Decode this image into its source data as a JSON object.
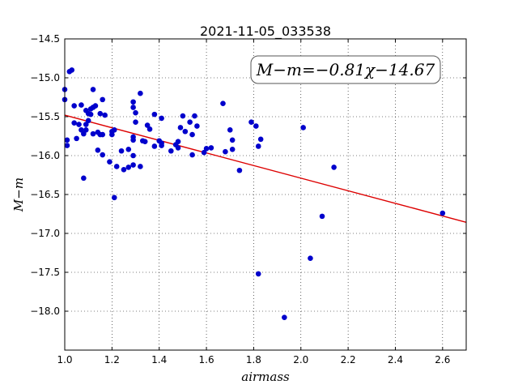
{
  "chart_data": {
    "type": "scatter",
    "title": "2021-11-05_033538",
    "xlabel": "airmass",
    "ylabel": "M−m",
    "xlim": [
      1.0,
      2.7
    ],
    "ylim": [
      -18.5,
      -14.5
    ],
    "y_inverted": true,
    "x_ticks": [
      1.0,
      1.2,
      1.4,
      1.6,
      1.8,
      2.0,
      2.2,
      2.4,
      2.6
    ],
    "x_tick_labels": [
      "1.0",
      "1.2",
      "1.4",
      "1.6",
      "1.8",
      "2.0",
      "2.2",
      "2.4",
      "2.6"
    ],
    "y_ticks": [
      -14.5,
      -15.0,
      -15.5,
      -16.0,
      -16.5,
      -17.0,
      -17.5,
      -18.0
    ],
    "y_tick_labels": [
      "−14.5",
      "−15.0",
      "−15.5",
      "−16.0",
      "−16.5",
      "−17.0",
      "−17.5",
      "−18.0"
    ],
    "grid": true,
    "annotation": "M−m=−0.81χ−14.67",
    "fit": {
      "slope": -0.81,
      "intercept": -14.67,
      "color": "#dd0000"
    },
    "marker_color": "#0000cc",
    "points": [
      [
        1.0,
        -15.15
      ],
      [
        1.0,
        -15.28
      ],
      [
        1.01,
        -15.8
      ],
      [
        1.01,
        -15.87
      ],
      [
        1.02,
        -14.92
      ],
      [
        1.03,
        -14.9
      ],
      [
        1.04,
        -15.36
      ],
      [
        1.04,
        -15.58
      ],
      [
        1.05,
        -15.78
      ],
      [
        1.06,
        -15.6
      ],
      [
        1.07,
        -15.67
      ],
      [
        1.07,
        -15.35
      ],
      [
        1.08,
        -15.72
      ],
      [
        1.08,
        -16.29
      ],
      [
        1.09,
        -15.42
      ],
      [
        1.09,
        -15.6
      ],
      [
        1.09,
        -15.67
      ],
      [
        1.1,
        -15.46
      ],
      [
        1.1,
        -15.55
      ],
      [
        1.11,
        -15.4
      ],
      [
        1.11,
        -15.47
      ],
      [
        1.12,
        -15.15
      ],
      [
        1.12,
        -15.38
      ],
      [
        1.12,
        -15.72
      ],
      [
        1.13,
        -15.36
      ],
      [
        1.14,
        -15.93
      ],
      [
        1.14,
        -15.7
      ],
      [
        1.15,
        -15.46
      ],
      [
        1.15,
        -15.73
      ],
      [
        1.16,
        -15.28
      ],
      [
        1.16,
        -15.73
      ],
      [
        1.16,
        -15.99
      ],
      [
        1.17,
        -15.48
      ],
      [
        1.19,
        -16.08
      ],
      [
        1.2,
        -15.69
      ],
      [
        1.2,
        -15.73
      ],
      [
        1.21,
        -15.67
      ],
      [
        1.21,
        -16.54
      ],
      [
        1.22,
        -16.14
      ],
      [
        1.24,
        -15.94
      ],
      [
        1.25,
        -16.18
      ],
      [
        1.27,
        -16.15
      ],
      [
        1.27,
        -15.92
      ],
      [
        1.29,
        -16.12
      ],
      [
        1.29,
        -15.31
      ],
      [
        1.29,
        -15.38
      ],
      [
        1.3,
        -15.45
      ],
      [
        1.3,
        -15.57
      ],
      [
        1.29,
        -15.76
      ],
      [
        1.29,
        -15.8
      ],
      [
        1.29,
        -16.0
      ],
      [
        1.32,
        -16.14
      ],
      [
        1.32,
        -15.2
      ],
      [
        1.33,
        -15.81
      ],
      [
        1.34,
        -15.82
      ],
      [
        1.35,
        -15.61
      ],
      [
        1.36,
        -15.66
      ],
      [
        1.38,
        -15.88
      ],
      [
        1.38,
        -15.47
      ],
      [
        1.4,
        -15.81
      ],
      [
        1.41,
        -15.52
      ],
      [
        1.41,
        -15.84
      ],
      [
        1.41,
        -15.87
      ],
      [
        1.45,
        -15.94
      ],
      [
        1.47,
        -15.86
      ],
      [
        1.48,
        -15.82
      ],
      [
        1.48,
        -15.9
      ],
      [
        1.49,
        -15.64
      ],
      [
        1.5,
        -15.49
      ],
      [
        1.51,
        -15.69
      ],
      [
        1.53,
        -15.57
      ],
      [
        1.54,
        -15.73
      ],
      [
        1.54,
        -15.99
      ],
      [
        1.55,
        -15.49
      ],
      [
        1.56,
        -15.62
      ],
      [
        1.59,
        -15.96
      ],
      [
        1.6,
        -15.91
      ],
      [
        1.62,
        -15.9
      ],
      [
        1.67,
        -15.33
      ],
      [
        1.68,
        -15.95
      ],
      [
        1.7,
        -15.67
      ],
      [
        1.71,
        -15.8
      ],
      [
        1.71,
        -15.92
      ],
      [
        1.74,
        -16.19
      ],
      [
        1.79,
        -15.57
      ],
      [
        1.81,
        -15.62
      ],
      [
        1.82,
        -15.88
      ],
      [
        1.82,
        -17.52
      ],
      [
        1.83,
        -15.79
      ],
      [
        1.93,
        -18.08
      ],
      [
        2.01,
        -15.64
      ],
      [
        2.04,
        -17.32
      ],
      [
        2.09,
        -16.78
      ],
      [
        2.14,
        -16.15
      ],
      [
        2.6,
        -16.74
      ]
    ]
  }
}
